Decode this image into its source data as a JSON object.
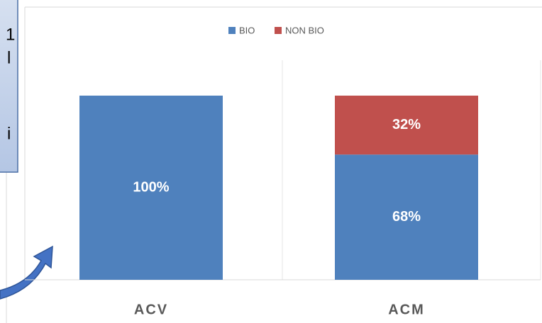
{
  "chart_data": {
    "type": "stacked_bar",
    "categories": [
      "ACV",
      "ACM"
    ],
    "series": [
      {
        "name": "BIO",
        "color": "#4f81bd",
        "values": [
          100,
          68
        ],
        "value_labels": [
          "100%",
          "68%"
        ]
      },
      {
        "name": "NON BIO",
        "color": "#c0504d",
        "values": [
          0,
          32
        ],
        "value_labels": [
          null,
          "32%"
        ]
      }
    ],
    "ylim": [
      0,
      100
    ],
    "annotations": [
      "1",
      "l",
      "i"
    ]
  }
}
